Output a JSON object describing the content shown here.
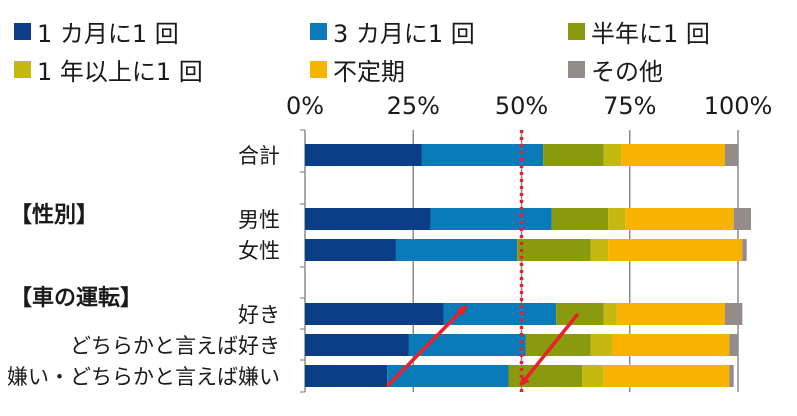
{
  "chart_data": {
    "type": "bar",
    "orientation": "horizontal",
    "stacked": true,
    "percent": true,
    "xlim": [
      0,
      100
    ],
    "x_ticks": [
      "0%",
      "25%",
      "50%",
      "75%",
      "100%"
    ],
    "x_axis_position": "top",
    "grid": true,
    "legend_placement": "top",
    "reference_line": {
      "value": 50,
      "style": "dotted",
      "color": "#e8222a"
    },
    "groups": [
      {
        "label": "",
        "rows": [
          "合計"
        ]
      },
      {
        "label": "【性別】",
        "rows": [
          "男性",
          "女性"
        ]
      },
      {
        "label": "【車の運転】",
        "rows": [
          "好き",
          "どちらかと言えば好き",
          "嫌い・どちらかと言えば嫌い"
        ]
      }
    ],
    "categories": [
      "合計",
      "男性",
      "女性",
      "好き",
      "どちらかと言えば好き",
      "嫌い・どちらかと言えば嫌い"
    ],
    "series": [
      {
        "name": "1 カ月に1 回",
        "color": "#0b3e86",
        "values": [
          27,
          29,
          21,
          32,
          24,
          19
        ]
      },
      {
        "name": "3 カ月に1 回",
        "color": "#0a7ab8",
        "values": [
          28,
          28,
          28,
          26,
          27,
          28
        ]
      },
      {
        "name": "半年に1 回",
        "color": "#8a9a0f",
        "values": [
          14,
          13,
          17,
          11,
          15,
          17
        ]
      },
      {
        "name": "1 年以上に1 回",
        "color": "#c5b80f",
        "values": [
          4,
          4,
          4,
          3,
          5,
          5
        ]
      },
      {
        "name": "不定期",
        "color": "#f7b300",
        "values": [
          24,
          25,
          31,
          25,
          27,
          29
        ]
      },
      {
        "name": "その他",
        "color": "#948b8b",
        "values": [
          3,
          4,
          1,
          4,
          2,
          1
        ]
      }
    ],
    "annotations": [
      {
        "type": "arrow",
        "color": "#e8222a",
        "from": {
          "row": "嫌い・どちらかと言えば嫌い",
          "value": 19
        },
        "to": {
          "row": "好き",
          "value": 37
        }
      },
      {
        "type": "arrow",
        "color": "#e8222a",
        "from": {
          "row": "好き",
          "value": 63
        },
        "to": {
          "row": "嫌い・どちらかと言えば嫌い",
          "value": 50
        }
      }
    ]
  }
}
